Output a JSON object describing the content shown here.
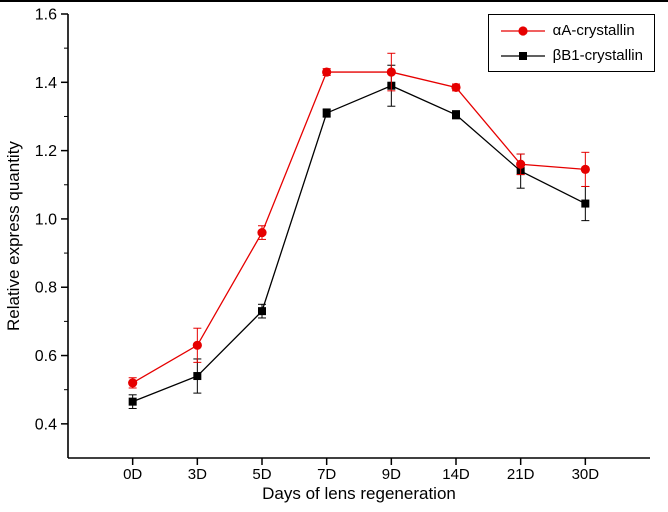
{
  "figure": {
    "background": "#ffffff",
    "axis_color": "#000000"
  },
  "chart_data": {
    "type": "line",
    "xlabel": "Days of lens regeneration",
    "ylabel": "Relative express quantity",
    "categories": [
      "0D",
      "3D",
      "5D",
      "7D",
      "9D",
      "14D",
      "21D",
      "30D"
    ],
    "ylim": [
      0.3,
      1.6
    ],
    "yticks": [
      0.4,
      0.6,
      0.8,
      1.0,
      1.2,
      1.4,
      1.6
    ],
    "y_minor_ticks": [
      0.5,
      0.7,
      0.9,
      1.1,
      1.3,
      1.5
    ],
    "grid": false,
    "legend_position": "top-right",
    "series": [
      {
        "name": "αA-crystallin",
        "color": "#e60000",
        "marker": "circle",
        "values": [
          0.52,
          0.63,
          0.96,
          1.43,
          1.43,
          1.385,
          1.16,
          1.145
        ],
        "errors": [
          0.015,
          0.05,
          0.02,
          0.01,
          0.055,
          0.01,
          0.03,
          0.05
        ]
      },
      {
        "name": "βB1-crystallin",
        "color": "#000000",
        "marker": "square",
        "values": [
          0.465,
          0.54,
          0.73,
          1.31,
          1.39,
          1.305,
          1.14,
          1.045
        ],
        "errors": [
          0.02,
          0.05,
          0.02,
          0.012,
          0.06,
          0.012,
          0.05,
          0.05
        ]
      }
    ]
  }
}
